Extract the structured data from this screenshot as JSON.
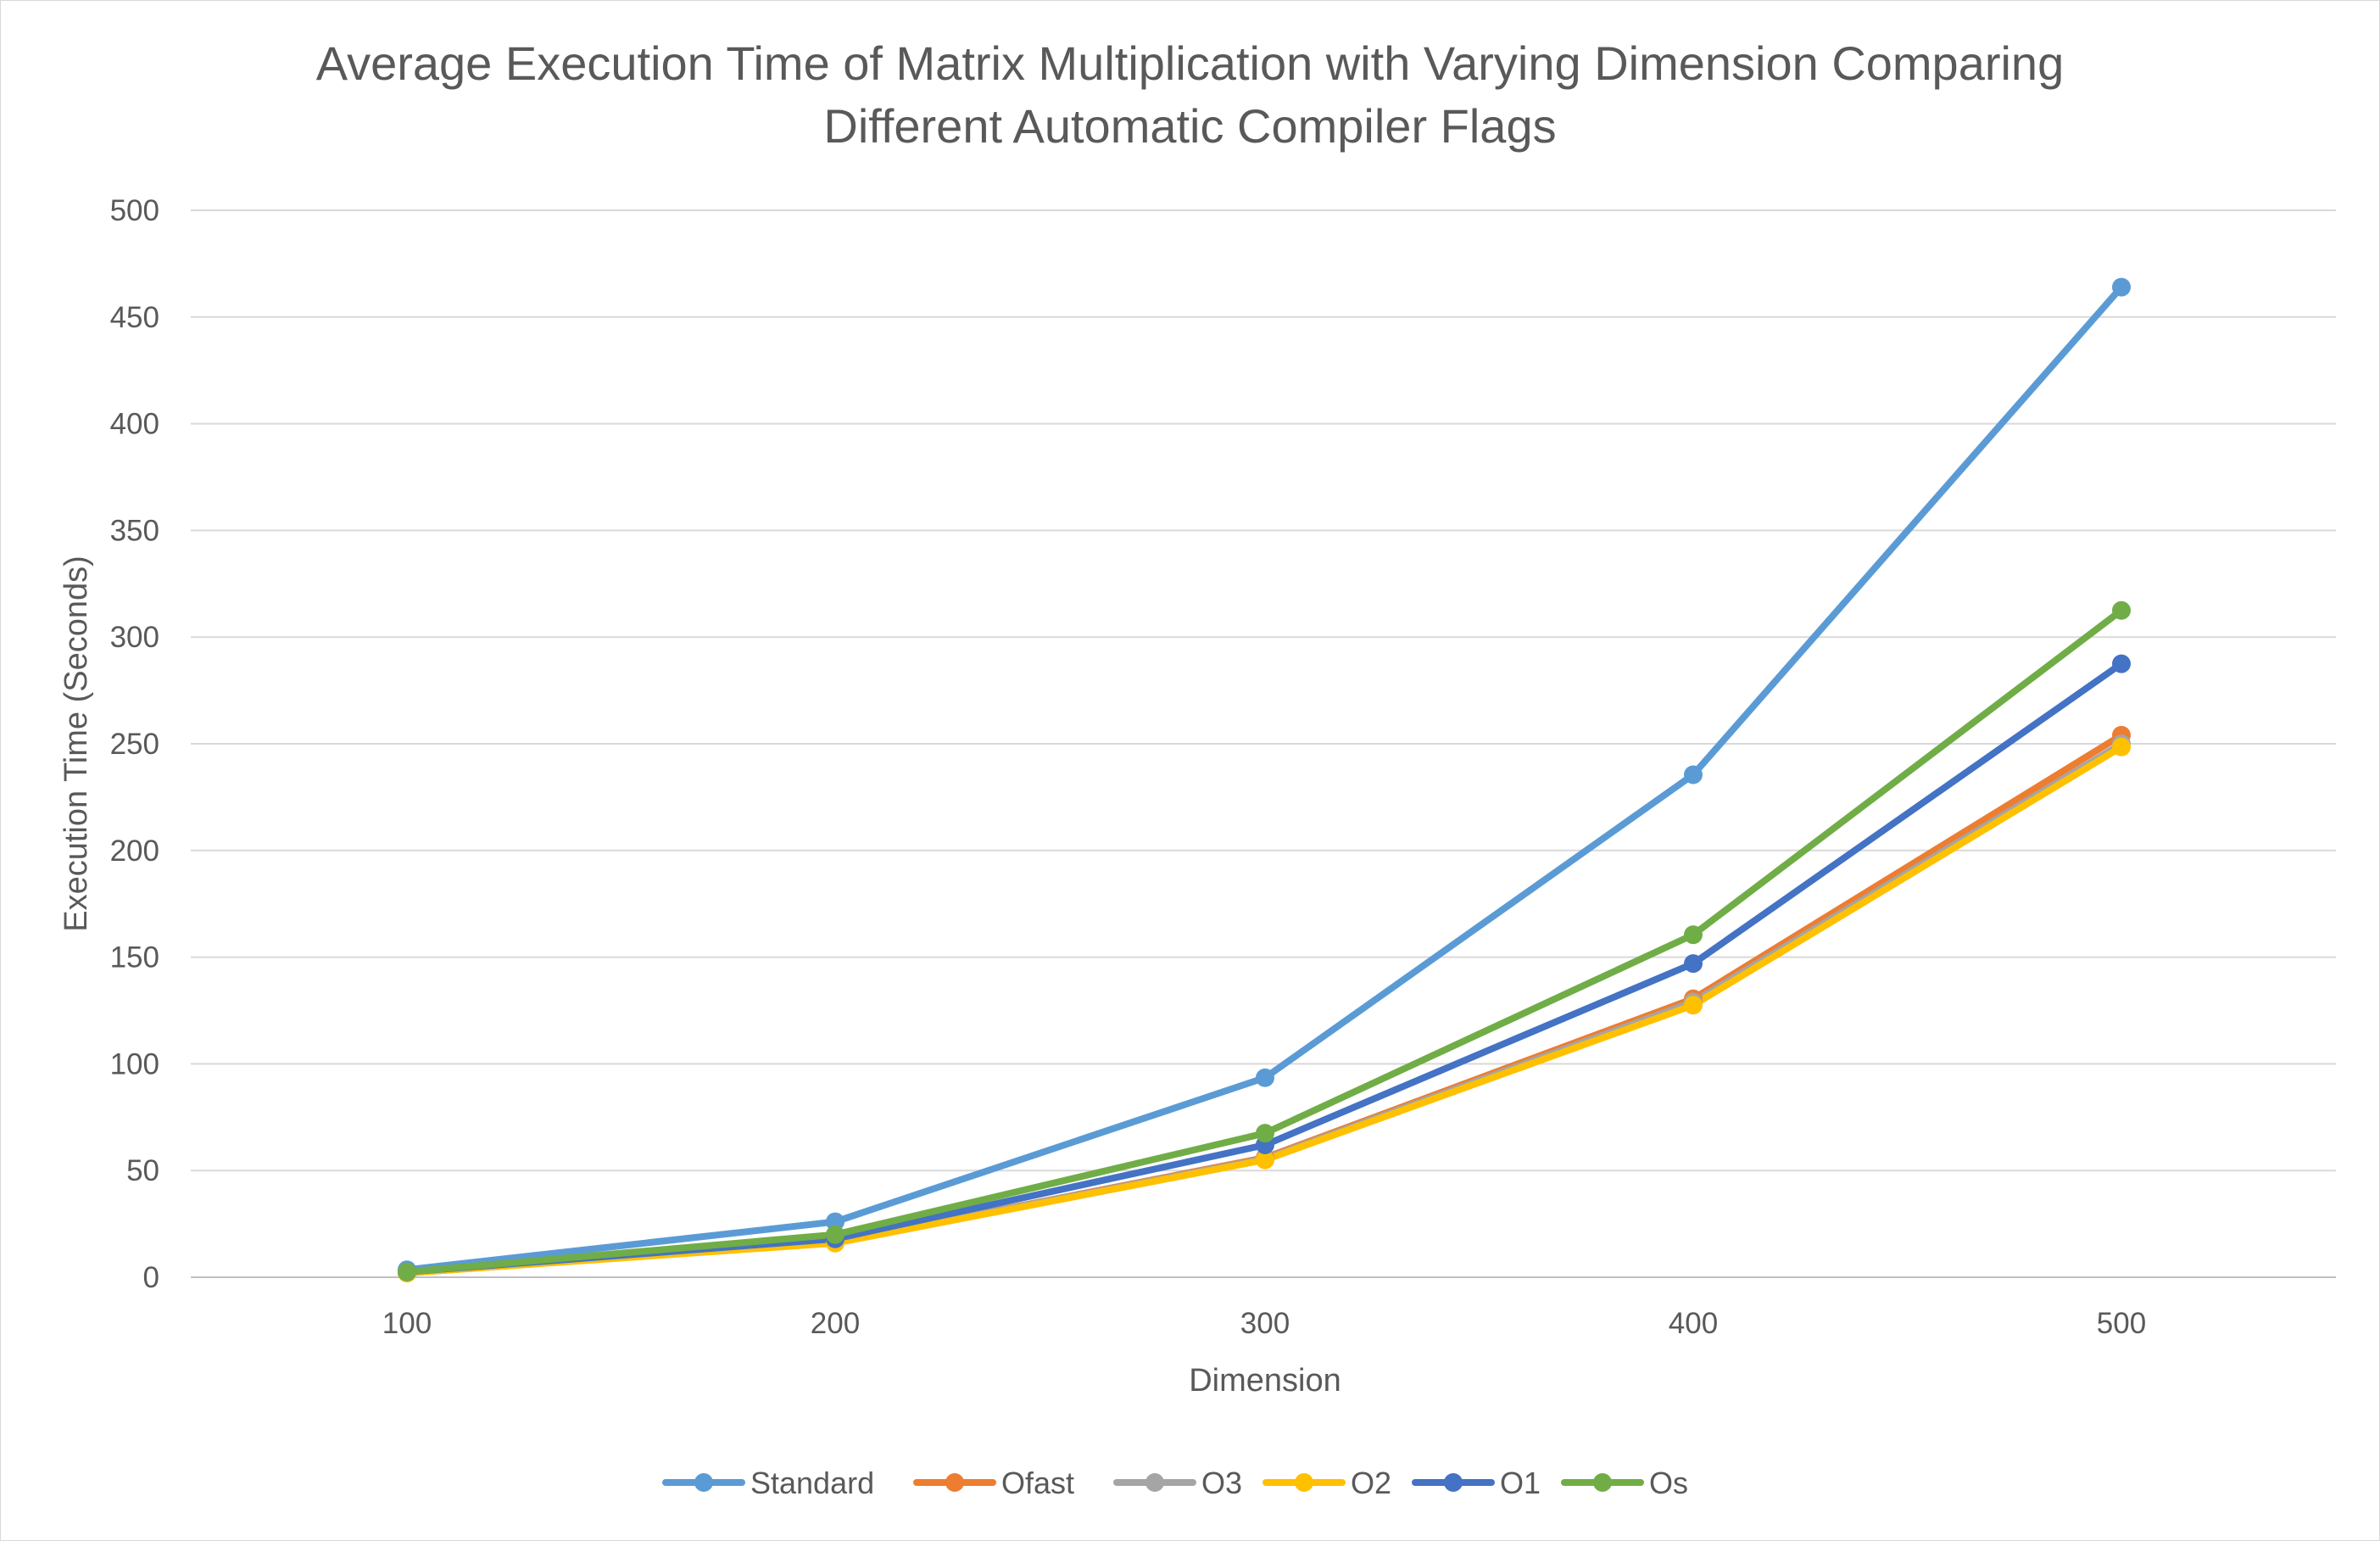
{
  "chart_data": {
    "type": "line",
    "title": "Average Execution Time of Matrix Multiplication with Varying Dimension Comparing Different Automatic Compiler Flags",
    "title_lines": [
      "Average Execution Time of Matrix Multiplication with Varying Dimension Comparing",
      "Different Automatic Compiler Flags"
    ],
    "xlabel": "Dimension",
    "ylabel": "Execution Time (Seconds)",
    "categories": [
      "100",
      "200",
      "300",
      "400",
      "500"
    ],
    "x": [
      100,
      200,
      300,
      400,
      500
    ],
    "ylim": [
      0,
      500
    ],
    "yticks": [
      0,
      50,
      100,
      150,
      200,
      250,
      300,
      350,
      400,
      450,
      500
    ],
    "grid": "horizontal",
    "legend_position": "bottom",
    "series": [
      {
        "name": "Standard",
        "color": "#5B9BD5",
        "values": [
          3.5,
          26,
          93.5,
          235.5,
          464
        ]
      },
      {
        "name": "Ofast",
        "color": "#ED7D31",
        "values": [
          2,
          16.5,
          56,
          130.5,
          254
        ]
      },
      {
        "name": "O3",
        "color": "#A5A5A5",
        "values": [
          2,
          16.5,
          55.5,
          129,
          250
        ]
      },
      {
        "name": "O2",
        "color": "#FFC000",
        "values": [
          2,
          16,
          55,
          127.5,
          248.5
        ]
      },
      {
        "name": "O1",
        "color": "#4472C4",
        "values": [
          2.5,
          18,
          62,
          147,
          287.5
        ]
      },
      {
        "name": "Os",
        "color": "#70AD47",
        "values": [
          2.5,
          20,
          67.5,
          160.5,
          312.5
        ]
      }
    ]
  }
}
